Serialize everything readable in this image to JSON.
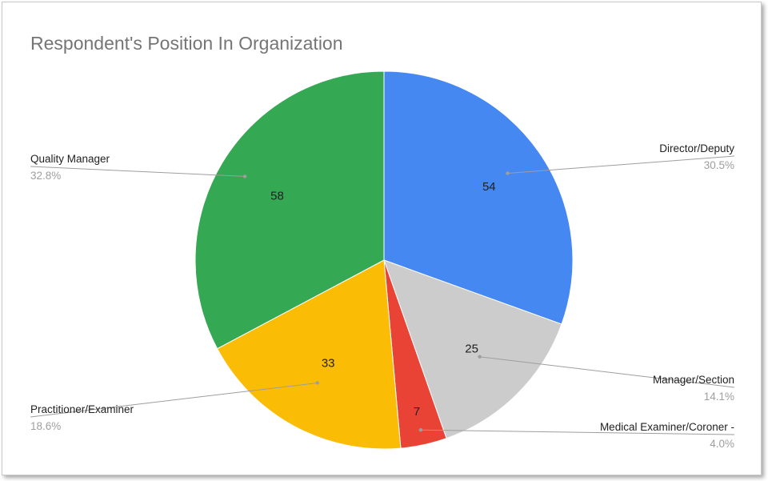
{
  "chart_data": {
    "type": "pie",
    "title": "Respondent's Position In Organization",
    "slices": [
      {
        "label": "Director/Deputy",
        "value": 54,
        "percent_label": "30.5%",
        "color": "#4688f1"
      },
      {
        "label": "Manager/Section",
        "value": 25,
        "percent_label": "14.1%",
        "color": "#cccccc"
      },
      {
        "label": "Medical Examiner/Coroner -",
        "value": 7,
        "percent_label": "4.0%",
        "color": "#e94335"
      },
      {
        "label": "Practitioner/Examiner",
        "value": 33,
        "percent_label": "18.6%",
        "color": "#fbbc05"
      },
      {
        "label": "Quality Manager",
        "value": 58,
        "percent_label": "32.8%",
        "color": "#34a853"
      }
    ],
    "start_angle_deg": 0,
    "direction": "clockwise",
    "legend": "labeled-callouts",
    "value_labels": "inside"
  }
}
